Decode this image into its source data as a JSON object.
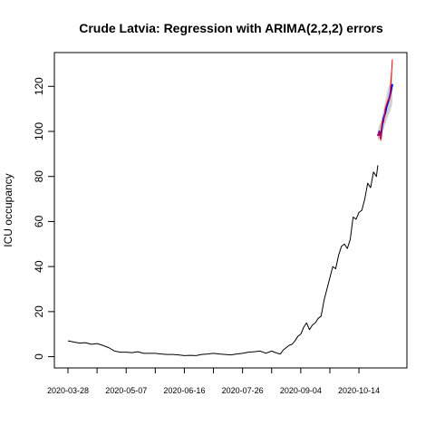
{
  "chart_data": {
    "type": "line",
    "title": "Crude Latvia: Regression with ARIMA(2,2,2) errors",
    "xlabel": "",
    "ylabel": "ICU occupancy",
    "x_is_date": true,
    "xlim": [
      "2020-03-28",
      "2020-11-06"
    ],
    "ylim": [
      -5,
      135
    ],
    "yticks": [
      0,
      20,
      40,
      60,
      80,
      100,
      120
    ],
    "xtick_labels": [
      "2020-03-28",
      "2020-05-07",
      "2020-06-16",
      "2020-07-26",
      "2020-09-04",
      "2020-10-14"
    ],
    "grid": false,
    "legend": "none",
    "colors": {
      "observed": "#000000",
      "fitted": "#0000ff",
      "forecast": "#ff0000",
      "interval": "#c8c8c8"
    },
    "series": [
      {
        "role": "observed",
        "x": [
          "2020-03-28",
          "2020-04-01",
          "2020-04-05",
          "2020-04-09",
          "2020-04-13",
          "2020-04-17",
          "2020-04-21",
          "2020-04-25",
          "2020-04-29",
          "2020-05-03",
          "2020-05-07",
          "2020-05-11",
          "2020-05-15",
          "2020-05-19",
          "2020-05-23",
          "2020-05-27",
          "2020-05-31",
          "2020-06-04",
          "2020-06-08",
          "2020-06-12",
          "2020-06-16",
          "2020-06-20",
          "2020-06-24",
          "2020-06-28",
          "2020-07-02",
          "2020-07-06",
          "2020-07-10",
          "2020-07-14",
          "2020-07-18",
          "2020-07-22",
          "2020-07-26",
          "2020-07-30",
          "2020-08-03",
          "2020-08-07",
          "2020-08-11",
          "2020-08-15",
          "2020-08-17",
          "2020-08-19",
          "2020-08-21",
          "2020-08-23",
          "2020-08-25",
          "2020-08-27",
          "2020-08-29",
          "2020-08-31",
          "2020-09-02",
          "2020-09-04",
          "2020-09-06",
          "2020-09-08",
          "2020-09-10",
          "2020-09-12",
          "2020-09-14",
          "2020-09-16",
          "2020-09-18",
          "2020-09-20",
          "2020-09-22",
          "2020-09-24",
          "2020-09-26",
          "2020-09-28",
          "2020-09-30",
          "2020-10-02",
          "2020-10-04",
          "2020-10-06",
          "2020-10-08",
          "2020-10-10",
          "2020-10-12",
          "2020-10-14",
          "2020-10-16",
          "2020-10-18",
          "2020-10-20",
          "2020-10-22",
          "2020-10-24",
          "2020-10-26",
          "2020-10-27"
        ],
        "y": [
          7,
          6.5,
          6,
          6.2,
          5.5,
          5.8,
          5,
          4,
          2.5,
          2,
          2,
          1.8,
          2.2,
          1.5,
          1.5,
          1.5,
          1.2,
          1,
          1,
          0.8,
          0.5,
          0.6,
          0.5,
          1,
          1.2,
          1.5,
          1.2,
          1,
          0.8,
          1.2,
          1.5,
          2,
          2.2,
          2.5,
          1.5,
          2.5,
          2,
          1.5,
          1.2,
          3,
          4,
          5,
          5.5,
          7,
          9,
          10,
          13,
          15,
          12,
          14,
          15,
          17,
          18,
          25,
          30,
          35,
          40,
          39,
          45,
          49,
          50,
          48,
          52,
          62,
          61,
          64,
          65,
          70,
          77,
          75,
          82,
          80,
          85
        ]
      },
      {
        "role": "fitted",
        "x": [
          "2020-10-27",
          "2020-10-28",
          "2020-10-29",
          "2020-10-30",
          "2020-10-31",
          "2020-11-01",
          "2020-11-02",
          "2020-11-03",
          "2020-11-04",
          "2020-11-05",
          "2020-11-06"
        ],
        "y": [
          98,
          100,
          97,
          103,
          106,
          108,
          111,
          113,
          115,
          118,
          121
        ]
      },
      {
        "role": "forecast",
        "x": [
          "2020-10-27",
          "2020-10-28",
          "2020-10-29",
          "2020-10-30",
          "2020-10-31",
          "2020-11-01",
          "2020-11-02",
          "2020-11-03",
          "2020-11-04",
          "2020-11-05",
          "2020-11-06"
        ],
        "y": [
          98,
          100,
          96,
          104,
          104,
          110,
          112,
          114,
          114,
          122,
          132
        ]
      }
    ],
    "interval": {
      "x": [
        "2020-10-27",
        "2020-10-28",
        "2020-10-29",
        "2020-10-30",
        "2020-10-31",
        "2020-11-01",
        "2020-11-02",
        "2020-11-03",
        "2020-11-04",
        "2020-11-05",
        "2020-11-06"
      ],
      "lower": [
        96,
        97,
        96,
        100,
        101,
        103,
        105,
        107,
        108,
        110,
        113
      ],
      "upper": [
        100,
        103,
        104,
        107,
        110,
        113,
        116,
        119,
        121,
        124,
        127
      ]
    }
  }
}
